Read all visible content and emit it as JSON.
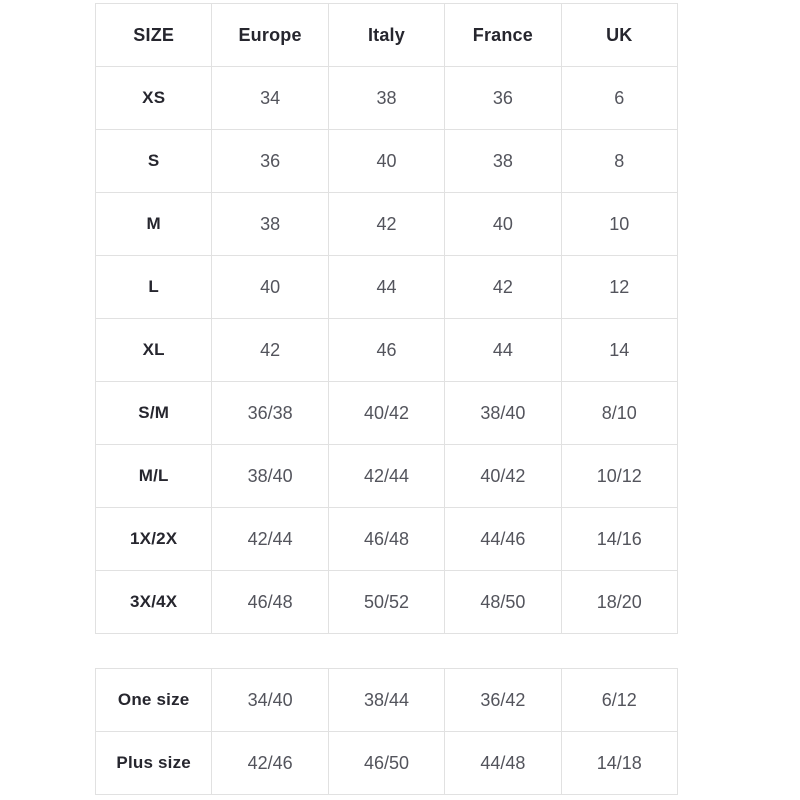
{
  "page": {
    "background": "#ffffff"
  },
  "colors": {
    "border": "#e1e1e1",
    "header_text": "#26262e",
    "value_text": "#53545c"
  },
  "tables": [
    {
      "name": "size-conversion-table",
      "columns": [
        "SIZE",
        "Europe",
        "Italy",
        "France",
        "UK"
      ],
      "rows": [
        {
          "label": "XS",
          "values": [
            "34",
            "38",
            "36",
            "6"
          ]
        },
        {
          "label": "S",
          "values": [
            "36",
            "40",
            "38",
            "8"
          ]
        },
        {
          "label": "M",
          "values": [
            "38",
            "42",
            "40",
            "10"
          ]
        },
        {
          "label": "L",
          "values": [
            "40",
            "44",
            "42",
            "12"
          ]
        },
        {
          "label": "XL",
          "values": [
            "42",
            "46",
            "44",
            "14"
          ]
        },
        {
          "label": "S/M",
          "values": [
            "36/38",
            "40/42",
            "38/40",
            "8/10"
          ]
        },
        {
          "label": "M/L",
          "values": [
            "38/40",
            "42/44",
            "40/42",
            "10/12"
          ]
        },
        {
          "label": "1X/2X",
          "values": [
            "42/44",
            "46/48",
            "44/46",
            "14/16"
          ]
        },
        {
          "label": "3X/4X",
          "values": [
            "46/48",
            "50/52",
            "48/50",
            "18/20"
          ]
        }
      ]
    },
    {
      "name": "special-sizes-table",
      "columns": [],
      "rows": [
        {
          "label": "One size",
          "values": [
            "34/40",
            "38/44",
            "36/42",
            "6/12"
          ]
        },
        {
          "label": "Plus size",
          "values": [
            "42/46",
            "46/50",
            "44/48",
            "14/18"
          ]
        }
      ]
    }
  ]
}
